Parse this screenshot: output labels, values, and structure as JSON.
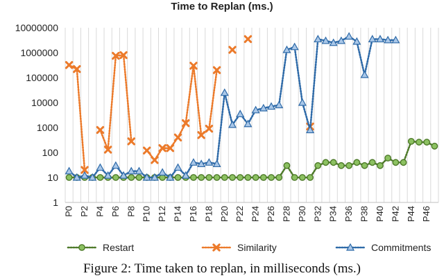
{
  "caption": "Figure 2: Time taken to replan, in milliseconds (ms.)",
  "chart_data": {
    "type": "line",
    "title": "Time to Replan (ms.)",
    "xlabel": "",
    "ylabel": "",
    "yscale": "log",
    "ylim": [
      1,
      10000000
    ],
    "yticks": [
      {
        "value": 1,
        "label": "1"
      },
      {
        "value": 10,
        "label": "10"
      },
      {
        "value": 100,
        "label": "100"
      },
      {
        "value": 1000,
        "label": "1000"
      },
      {
        "value": 10000,
        "label": "10000"
      },
      {
        "value": 100000,
        "label": "100000"
      },
      {
        "value": 1000000,
        "label": "1000000"
      },
      {
        "value": 10000000,
        "label": "10000000"
      }
    ],
    "categories": [
      "P0",
      "P1",
      "P2",
      "P3",
      "P4",
      "P5",
      "P6",
      "P7",
      "P8",
      "P9",
      "P10",
      "P11",
      "P12",
      "P13",
      "P14",
      "P15",
      "P16",
      "P17",
      "P18",
      "P19",
      "P20",
      "P21",
      "P22",
      "P23",
      "P24",
      "P25",
      "P26",
      "P27",
      "P28",
      "P29",
      "P30",
      "P31",
      "P32",
      "P33",
      "P34",
      "P35",
      "P36",
      "P37",
      "P38",
      "P39",
      "P40",
      "P41",
      "P42",
      "P43",
      "P44",
      "P45",
      "P46",
      "P47"
    ],
    "xtick_labels": [
      "P0",
      "P2",
      "P4",
      "P6",
      "P8",
      "P10",
      "P12",
      "P14",
      "P16",
      "P18",
      "P20",
      "P22",
      "P24",
      "P26",
      "P28",
      "P30",
      "P32",
      "P34",
      "P36",
      "P38",
      "P40",
      "P42",
      "P44",
      "P46"
    ],
    "grid": "vertical",
    "legend_position": "bottom",
    "series": [
      {
        "name": "Restart",
        "color": "#4e7a2a",
        "fill": "#8cc161",
        "marker": "circle",
        "dash": "dotted",
        "values": [
          10,
          10,
          10,
          10,
          10,
          10,
          10,
          10,
          10,
          10,
          10,
          10,
          10,
          10,
          10,
          10,
          10,
          10,
          10,
          10,
          10,
          10,
          10,
          10,
          10,
          10,
          10,
          10,
          30,
          10,
          10,
          10,
          30,
          40,
          40,
          30,
          30,
          40,
          30,
          40,
          30,
          60,
          40,
          40,
          280,
          260,
          260,
          180
        ]
      },
      {
        "name": "Similarity",
        "color": "#ec7a2a",
        "fill": "#ec7a2a",
        "marker": "x",
        "dash": "dotted",
        "values": [
          320000,
          220000,
          20,
          null,
          800,
          130,
          750000,
          800000,
          280,
          null,
          120,
          50,
          150,
          150,
          400,
          1500,
          300000,
          500,
          900,
          200000,
          null,
          1300000,
          null,
          3500000,
          null,
          null,
          null,
          null,
          null,
          null,
          null,
          1100,
          null,
          null,
          null,
          null,
          null,
          null,
          null,
          null,
          null,
          null,
          null,
          null,
          null,
          null,
          null,
          null
        ]
      },
      {
        "name": "Commitments",
        "color": "#2e6aa8",
        "fill": "#a9c7e8",
        "marker": "triangle",
        "dash": "dotted",
        "values": [
          18,
          10,
          12,
          10,
          25,
          12,
          30,
          12,
          18,
          18,
          10,
          10,
          16,
          10,
          25,
          12,
          40,
          35,
          40,
          35,
          25000,
          1300,
          3500,
          1400,
          5000,
          6000,
          7000,
          8000,
          1300000,
          1700000,
          10000,
          800,
          3500000,
          3000000,
          2500000,
          3000000,
          4500000,
          2800000,
          130000,
          3500000,
          3500000,
          3200000,
          3200000,
          null,
          null,
          null,
          null,
          null
        ]
      }
    ]
  }
}
